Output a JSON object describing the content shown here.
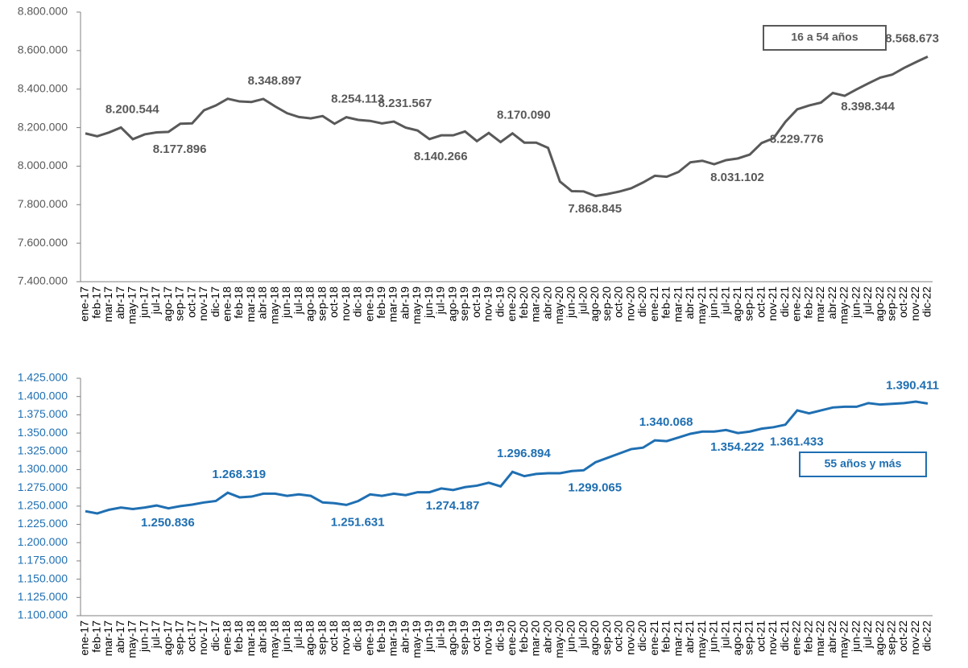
{
  "chart_data": [
    {
      "type": "line",
      "categories": [
        "ene-17",
        "feb-17",
        "mar-17",
        "abr-17",
        "may-17",
        "jun-17",
        "jul-17",
        "ago-17",
        "sep-17",
        "oct-17",
        "nov-17",
        "dic-17",
        "ene-18",
        "feb-18",
        "mar-18",
        "abr-18",
        "may-18",
        "jun-18",
        "jul-18",
        "ago-18",
        "sep-18",
        "oct-18",
        "nov-18",
        "dic-18",
        "ene-19",
        "feb-19",
        "mar-19",
        "abr-19",
        "may-19",
        "jun-19",
        "jul-19",
        "ago-19",
        "sep-19",
        "oct-19",
        "nov-19",
        "dic-19",
        "ene-20",
        "feb-20",
        "mar-20",
        "abr-20",
        "may-20",
        "jun-20",
        "jul-20",
        "ago-20",
        "sep-20",
        "oct-20",
        "nov-20",
        "dic-20",
        "ene-21",
        "feb-21",
        "mar-21",
        "abr-21",
        "may-21",
        "jun-21",
        "jul-21",
        "ago-21",
        "sep-21",
        "oct-21",
        "nov-21",
        "dic-21",
        "ene-22",
        "feb-22",
        "mar-22",
        "abr-22",
        "may-22",
        "jun-22",
        "jul-22",
        "ago-22",
        "sep-22",
        "oct-22",
        "nov-22",
        "dic-22"
      ],
      "series": [
        {
          "name": "16 a 54 años",
          "color": "#595959",
          "values": [
            8170000,
            8155000,
            8175000,
            8200544,
            8140000,
            8165000,
            8175000,
            8177896,
            8220000,
            8222000,
            8290000,
            8315000,
            8350000,
            8336000,
            8333000,
            8348897,
            8310000,
            8275000,
            8255000,
            8248000,
            8260000,
            8220000,
            8254113,
            8240000,
            8235000,
            8222000,
            8231567,
            8200000,
            8185000,
            8140266,
            8160000,
            8160000,
            8180000,
            8130000,
            8172000,
            8125000,
            8170090,
            8122000,
            8122000,
            8095000,
            7920000,
            7870000,
            7868845,
            7845000,
            7855000,
            7868000,
            7885000,
            7915000,
            7950000,
            7945000,
            7970000,
            8020000,
            8028000,
            8010000,
            8031102,
            8040000,
            8060000,
            8120000,
            8145000,
            8229776,
            8295000,
            8315000,
            8330000,
            8380000,
            8365000,
            8398344,
            8430000,
            8460000,
            8475000,
            8510000,
            8540000,
            8568673
          ],
          "value_labels": [
            null,
            null,
            null,
            "8.200.544",
            null,
            null,
            null,
            "8.177.896",
            null,
            null,
            null,
            null,
            null,
            null,
            null,
            "8.348.897",
            null,
            null,
            null,
            null,
            null,
            null,
            "8.254.113",
            null,
            null,
            null,
            "8.231.567",
            null,
            null,
            "8.140.266",
            null,
            null,
            null,
            null,
            null,
            null,
            "8.170.090",
            null,
            null,
            null,
            null,
            null,
            "7.868.845",
            null,
            null,
            null,
            null,
            null,
            null,
            null,
            null,
            null,
            null,
            null,
            "8.031.102",
            null,
            null,
            null,
            null,
            "8.229.776",
            null,
            null,
            null,
            null,
            null,
            "8.398.344",
            null,
            null,
            null,
            null,
            null,
            "8.568.673"
          ]
        }
      ],
      "ylim": [
        7400000,
        8800000
      ],
      "yticks": [
        {
          "value": 7400000,
          "label": "7.400.000"
        },
        {
          "value": 7600000,
          "label": "7.600.000"
        },
        {
          "value": 7800000,
          "label": "7.800.000"
        },
        {
          "value": 8000000,
          "label": "8.000.000"
        },
        {
          "value": 8200000,
          "label": "8.200.000"
        },
        {
          "value": 8400000,
          "label": "8.400.000"
        },
        {
          "value": 8600000,
          "label": "8.600.000"
        },
        {
          "value": 8800000,
          "label": "8.800.000"
        }
      ],
      "grid": false
    },
    {
      "type": "line",
      "categories": [
        "ene-17",
        "feb-17",
        "mar-17",
        "abr-17",
        "may-17",
        "jun-17",
        "jul-17",
        "ago-17",
        "sep-17",
        "oct-17",
        "nov-17",
        "dic-17",
        "ene-18",
        "feb-18",
        "mar-18",
        "abr-18",
        "may-18",
        "jun-18",
        "jul-18",
        "ago-18",
        "sep-18",
        "oct-18",
        "nov-18",
        "dic-18",
        "ene-19",
        "feb-19",
        "mar-19",
        "abr-19",
        "may-19",
        "jun-19",
        "jul-19",
        "ago-19",
        "sep-19",
        "oct-19",
        "nov-19",
        "dic-19",
        "ene-20",
        "feb-20",
        "mar-20",
        "abr-20",
        "may-20",
        "jun-20",
        "jul-20",
        "ago-20",
        "sep-20",
        "oct-20",
        "nov-20",
        "dic-20",
        "ene-21",
        "feb-21",
        "mar-21",
        "abr-21",
        "may-21",
        "jun-21",
        "jul-21",
        "ago-21",
        "sep-21",
        "oct-21",
        "nov-21",
        "dic-21",
        "ene-22",
        "feb-22",
        "mar-22",
        "abr-22",
        "may-22",
        "jun-22",
        "jul-22",
        "ago-22",
        "sep-22",
        "oct-22",
        "nov-22",
        "dic-22"
      ],
      "series": [
        {
          "name": "55 años y más",
          "color": "#1f6fb2",
          "values": [
            1243000,
            1240000,
            1245000,
            1248000,
            1246000,
            1248000,
            1250836,
            1247000,
            1250000,
            1252000,
            1255000,
            1257000,
            1268319,
            1262000,
            1263000,
            1267000,
            1267000,
            1264000,
            1266000,
            1264000,
            1255000,
            1254000,
            1251631,
            1257000,
            1266000,
            1264000,
            1267000,
            1265000,
            1269000,
            1269000,
            1274187,
            1272000,
            1276000,
            1278000,
            1282000,
            1277000,
            1296894,
            1291000,
            1294000,
            1295000,
            1295000,
            1298000,
            1299065,
            1310000,
            1316000,
            1322000,
            1328000,
            1330000,
            1340068,
            1339000,
            1344000,
            1349000,
            1352000,
            1352000,
            1354222,
            1350000,
            1352000,
            1356000,
            1358000,
            1361433,
            1381000,
            1377000,
            1381000,
            1385000,
            1386000,
            1386000,
            1391000,
            1389000,
            1390000,
            1391000,
            1393000,
            1390411
          ],
          "value_labels": [
            null,
            null,
            null,
            null,
            null,
            null,
            "1.250.836",
            null,
            null,
            null,
            null,
            null,
            "1.268.319",
            null,
            null,
            null,
            null,
            null,
            null,
            null,
            null,
            null,
            "1.251.631",
            null,
            null,
            null,
            null,
            null,
            null,
            null,
            "1.274.187",
            null,
            null,
            null,
            null,
            null,
            "1.296.894",
            null,
            null,
            null,
            null,
            null,
            "1.299.065",
            null,
            null,
            null,
            null,
            null,
            "1.340.068",
            null,
            null,
            null,
            null,
            null,
            "1.354.222",
            null,
            null,
            null,
            null,
            "1.361.433",
            null,
            null,
            null,
            null,
            null,
            null,
            null,
            null,
            null,
            null,
            null,
            "1.390.411"
          ]
        }
      ],
      "ylim": [
        1100000,
        1425000
      ],
      "yticks": [
        {
          "value": 1100000,
          "label": "1.100.000"
        },
        {
          "value": 1125000,
          "label": "1.125.000"
        },
        {
          "value": 1150000,
          "label": "1.150.000"
        },
        {
          "value": 1175000,
          "label": "1.175.000"
        },
        {
          "value": 1200000,
          "label": "1.200.000"
        },
        {
          "value": 1225000,
          "label": "1.225.000"
        },
        {
          "value": 1250000,
          "label": "1.250.000"
        },
        {
          "value": 1275000,
          "label": "1.275.000"
        },
        {
          "value": 1300000,
          "label": "1.300.000"
        },
        {
          "value": 1325000,
          "label": "1.325.000"
        },
        {
          "value": 1350000,
          "label": "1.350.000"
        },
        {
          "value": 1375000,
          "label": "1.375.000"
        },
        {
          "value": 1400000,
          "label": "1.400.000"
        },
        {
          "value": 1425000,
          "label": "1.425.000"
        }
      ],
      "grid": false
    }
  ]
}
